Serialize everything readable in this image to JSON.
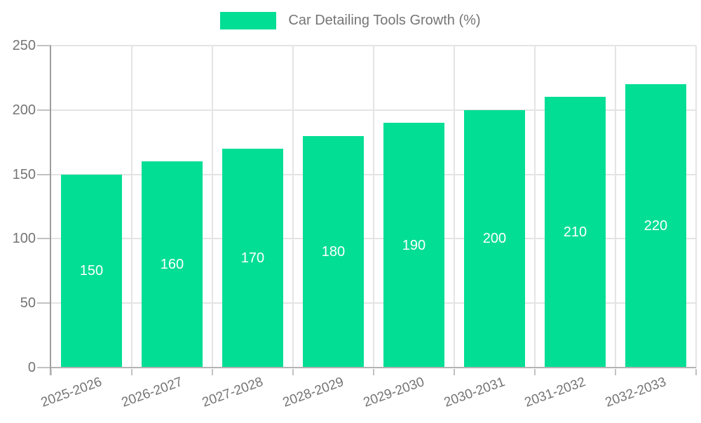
{
  "colors": {
    "background": "#ffffff",
    "bar_color": "#03DE95",
    "bar_label_color": "#ffffff",
    "text_color": "#757575",
    "axis_color": "#b3b3b3",
    "axis_strong_color": "#9e9e9e",
    "tick_color": "#c2c2c2",
    "grid_color": "#e4e4e4"
  },
  "legend": {
    "position": "top",
    "items": [
      {
        "label": "Car Detailing Tools Growth (%)",
        "swatch_color": "#03DE95"
      }
    ]
  },
  "chart_data": {
    "type": "bar",
    "title": "Car Detailing Tools Growth (%)",
    "categories": [
      "2025-2026",
      "2026-2027",
      "2027-2028",
      "2028-2029",
      "2029-2030",
      "2030-2031",
      "2031-2032",
      "2032-2033"
    ],
    "values": [
      150,
      160,
      170,
      180,
      190,
      200,
      210,
      220
    ],
    "xlabel": "",
    "ylabel": "",
    "ylim": [
      0,
      250
    ],
    "yticks": [
      0,
      50,
      100,
      150,
      200,
      250
    ],
    "grid": true,
    "legend_position": "top",
    "value_labels": "inside-center",
    "xtick_rotation_deg": -20
  }
}
